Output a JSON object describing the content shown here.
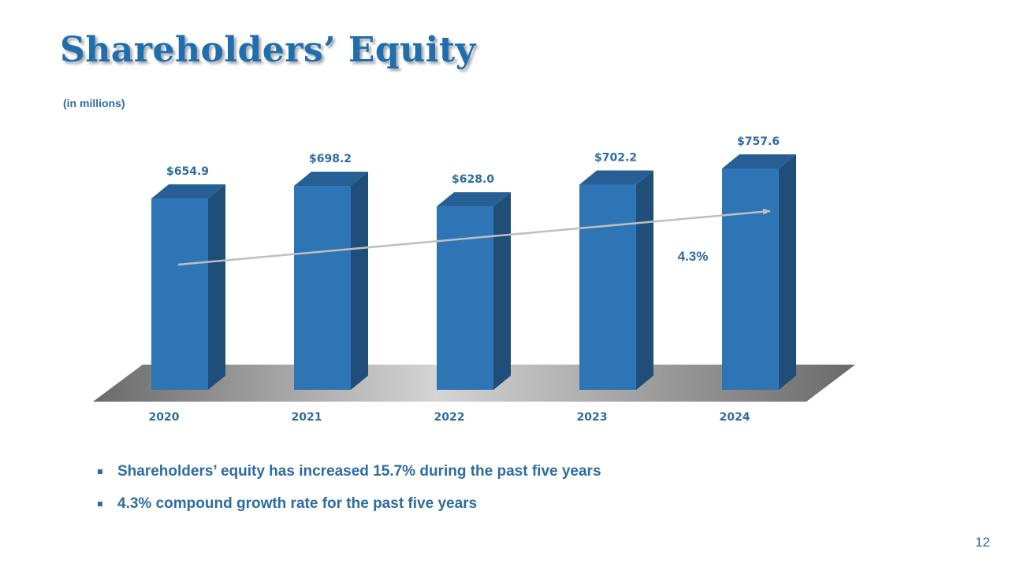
{
  "slide": {
    "title": "Shareholders’ Equity",
    "subtitle": "(in millions)",
    "page_number": "12",
    "bullets": [
      "Shareholders’ equity has increased 15.7% during the past five years",
      "4.3% compound growth rate for the past five years"
    ]
  },
  "colors": {
    "bar_front": "#2e75b6",
    "bar_side": "#1f4e79",
    "bar_top": "#255f95",
    "text_accent": "#2d6ca2",
    "trend_line": "#bfbfbf"
  },
  "chart_data": {
    "type": "bar",
    "categories": [
      "2020",
      "2021",
      "2022",
      "2023",
      "2024"
    ],
    "values": [
      654.9,
      698.2,
      628.0,
      702.2,
      757.6
    ],
    "value_labels": [
      "$654.9",
      "$698.2",
      "$628.0",
      "$702.2",
      "$757.6"
    ],
    "title": "",
    "xlabel": "",
    "ylabel": "",
    "ylim": [
      0,
      757.6
    ],
    "grid": false,
    "legend": "none",
    "trend": {
      "label": "4.3%"
    }
  }
}
